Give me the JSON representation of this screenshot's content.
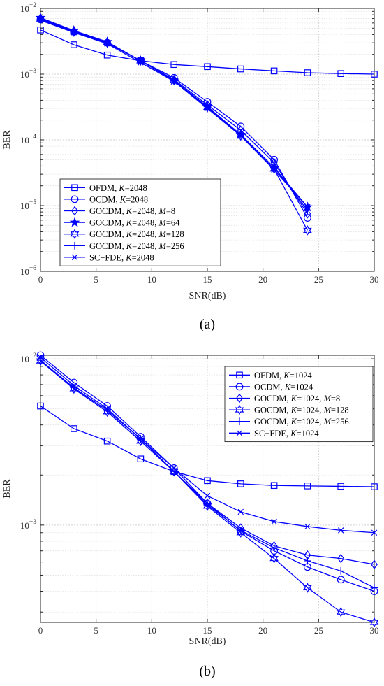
{
  "figure": {
    "captions": [
      "(a)",
      "(b)"
    ],
    "line_color": "#0000ff"
  },
  "chart_data": [
    {
      "type": "line",
      "caption": "a",
      "xlabel": "SNR(dB)",
      "ylabel": "BER",
      "yscale": "log",
      "xlim": [
        0,
        30
      ],
      "ylim": [
        1e-06,
        0.01
      ],
      "xticks": [
        0,
        5,
        10,
        15,
        20,
        25,
        30
      ],
      "ytick_exponents": [
        -6,
        -5,
        -4,
        -3,
        -2
      ],
      "grid": true,
      "legend_position": "lower-left",
      "series": [
        {
          "name": "OFDM, K=2048",
          "label": {
            "pre": "OFDM, ",
            "param": "K",
            "eq": "=2048"
          },
          "marker": "square",
          "x": [
            0,
            3,
            6,
            9,
            12,
            15,
            18,
            21,
            24,
            27,
            30
          ],
          "y": [
            0.0047,
            0.0028,
            0.00195,
            0.0016,
            0.0014,
            0.0013,
            0.0012,
            0.00112,
            0.00105,
            0.00102,
            0.001
          ]
        },
        {
          "name": "OCDM, K=2048",
          "label": {
            "pre": "OCDM, ",
            "param": "K",
            "eq": "=2048"
          },
          "marker": "circle",
          "x": [
            0,
            3,
            6,
            9,
            12,
            15,
            18,
            21,
            24
          ],
          "y": [
            0.0068,
            0.0044,
            0.003,
            0.0016,
            0.00088,
            0.00038,
            0.00016,
            5e-05,
            6.5e-06
          ]
        },
        {
          "name": "GOCDM, K=2048, M=8",
          "label": {
            "pre": "GOCDM, ",
            "param": "K",
            "eq": "=2048, ",
            "param2": "M",
            "eq2": "=8"
          },
          "marker": "diamond",
          "x": [
            0,
            3,
            6,
            9,
            12,
            15,
            18,
            21,
            24
          ],
          "y": [
            0.007,
            0.0045,
            0.003,
            0.0016,
            0.00083,
            0.00034,
            0.00014,
            4.5e-05,
            7.5e-06
          ]
        },
        {
          "name": "GOCDM, K=2048, M=64",
          "label": {
            "pre": "GOCDM, ",
            "param": "K",
            "eq": "=2048, ",
            "param2": "M",
            "eq2": "=64"
          },
          "marker": "star5",
          "x": [
            0,
            3,
            6,
            9,
            12,
            15,
            18,
            21,
            24
          ],
          "y": [
            0.0072,
            0.0046,
            0.0031,
            0.0016,
            0.0008,
            0.00032,
            0.00012,
            3.8e-05,
            9.5e-06
          ]
        },
        {
          "name": "GOCDM, K=2048, M=128",
          "label": {
            "pre": "GOCDM, ",
            "param": "K",
            "eq": "=2048, ",
            "param2": "M",
            "eq2": "=128"
          },
          "marker": "star6",
          "x": [
            0,
            3,
            6,
            9,
            12,
            15,
            18,
            21,
            24
          ],
          "y": [
            0.0069,
            0.0044,
            0.003,
            0.0016,
            0.0008,
            0.00031,
            0.000115,
            3.6e-05,
            4.2e-06
          ]
        },
        {
          "name": "GOCDM, K=2048, M=256",
          "label": {
            "pre": "GOCDM, ",
            "param": "K",
            "eq": "=2048, ",
            "param2": "M",
            "eq2": "=256"
          },
          "marker": "plus",
          "x": [
            0,
            3,
            6,
            9,
            12,
            15,
            18,
            21,
            24
          ],
          "y": [
            0.0068,
            0.0044,
            0.003,
            0.0016,
            0.00079,
            0.00032,
            0.00012,
            3.8e-05,
            8.5e-06
          ]
        },
        {
          "name": "SC-FDE, K=2048",
          "label": {
            "pre": "SC−FDE, ",
            "param": "K",
            "eq": "=2048"
          },
          "marker": "x",
          "x": [
            0,
            3,
            6,
            9,
            12,
            15,
            18,
            21,
            24
          ],
          "y": [
            0.0066,
            0.0043,
            0.0029,
            0.0015,
            0.00078,
            0.0003,
            0.000115,
            3.5e-05,
            9.5e-06
          ]
        }
      ]
    },
    {
      "type": "line",
      "caption": "b",
      "xlabel": "SNR(dB)",
      "ylabel": "BER",
      "yscale": "log",
      "xlim": [
        0,
        30
      ],
      "ylim": [
        0.00026,
        0.0105
      ],
      "xticks": [
        0,
        5,
        10,
        15,
        20,
        25,
        30
      ],
      "ytick_exponents": [
        -3,
        -2
      ],
      "grid": true,
      "legend_position": "top-right",
      "series": [
        {
          "name": "OFDM, K=1024",
          "label": {
            "pre": "OFDM, ",
            "param": "K",
            "eq": "=1024"
          },
          "marker": "square",
          "x": [
            0,
            3,
            6,
            9,
            12,
            15,
            18,
            21,
            24,
            27,
            30
          ],
          "y": [
            0.0052,
            0.0038,
            0.0032,
            0.0025,
            0.0021,
            0.00185,
            0.00177,
            0.00173,
            0.00172,
            0.00171,
            0.0017
          ]
        },
        {
          "name": "OCDM, K=1024",
          "label": {
            "pre": "OCDM, ",
            "param": "K",
            "eq": "=1024"
          },
          "marker": "circle",
          "x": [
            0,
            3,
            6,
            9,
            12,
            15,
            18,
            21,
            24,
            27,
            30
          ],
          "y": [
            0.0105,
            0.0072,
            0.0052,
            0.0034,
            0.0022,
            0.00135,
            0.00092,
            0.0007,
            0.00056,
            0.00047,
            0.0004
          ]
        },
        {
          "name": "GOCDM, K=1024, M=8",
          "label": {
            "pre": "GOCDM, ",
            "param": "K",
            "eq": "=1024, ",
            "param2": "M",
            "eq2": "=8"
          },
          "marker": "diamond",
          "x": [
            0,
            3,
            6,
            9,
            12,
            15,
            18,
            21,
            24,
            27,
            30
          ],
          "y": [
            0.0098,
            0.0066,
            0.0048,
            0.0032,
            0.0021,
            0.00135,
            0.00096,
            0.00075,
            0.00066,
            0.00063,
            0.00058
          ]
        },
        {
          "name": "GOCDM, K=1024, M=128",
          "label": {
            "pre": "GOCDM, ",
            "param": "K",
            "eq": "=1024, ",
            "param2": "M",
            "eq2": "=128"
          },
          "marker": "star6",
          "x": [
            0,
            3,
            6,
            9,
            12,
            15,
            18,
            21,
            24,
            27,
            30
          ],
          "y": [
            0.0097,
            0.0066,
            0.0048,
            0.0032,
            0.0021,
            0.0013,
            0.0009,
            0.00063,
            0.00042,
            0.0003,
            0.00026
          ]
        },
        {
          "name": "GOCDM, K=1024, M=256",
          "label": {
            "pre": "GOCDM, ",
            "param": "K",
            "eq": "=1024, ",
            "param2": "M",
            "eq2": "=256"
          },
          "marker": "plus",
          "x": [
            0,
            3,
            6,
            9,
            12,
            15,
            18,
            21,
            24,
            27,
            30
          ],
          "y": [
            0.0098,
            0.0067,
            0.0049,
            0.0033,
            0.0021,
            0.00132,
            0.00093,
            0.00073,
            0.00061,
            0.00053,
            0.00042
          ]
        },
        {
          "name": "SC-FDE, K=1024",
          "label": {
            "pre": "SC−FDE, ",
            "param": "K",
            "eq": "=1024"
          },
          "marker": "x",
          "x": [
            0,
            3,
            6,
            9,
            12,
            15,
            18,
            21,
            24,
            27,
            30
          ],
          "y": [
            0.0102,
            0.0069,
            0.005,
            0.0033,
            0.0022,
            0.0015,
            0.0012,
            0.00105,
            0.00098,
            0.00093,
            0.0009
          ]
        }
      ]
    }
  ]
}
